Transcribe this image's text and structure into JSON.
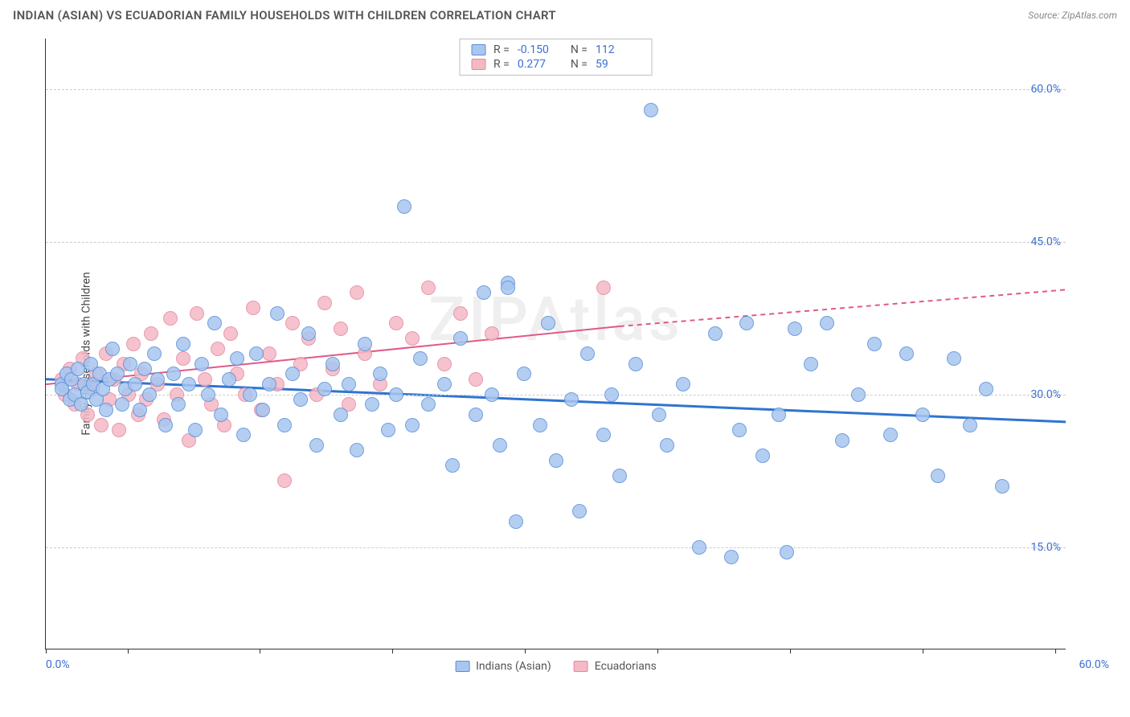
{
  "title": "INDIAN (ASIAN) VS ECUADORIAN FAMILY HOUSEHOLDS WITH CHILDREN CORRELATION CHART",
  "source": "Source: ZipAtlas.com",
  "ylabel": "Family Households with Children",
  "watermark": "ZIPAtlas",
  "chart": {
    "type": "scatter",
    "xlim": [
      0,
      64
    ],
    "ylim": [
      5,
      65
    ],
    "x_tick_positions_pct": [
      0,
      8,
      21,
      34,
      47,
      60,
      73,
      86,
      99
    ],
    "x_label_min": "0.0%",
    "x_label_max": "60.0%",
    "y_gridlines": [
      15,
      30,
      45,
      60
    ],
    "y_labels": [
      "15.0%",
      "30.0%",
      "45.0%",
      "60.0%"
    ],
    "background_color": "#ffffff",
    "grid_color": "#cccccc",
    "axis_color": "#333333",
    "tick_label_color": "#3b6fd1",
    "point_radius": 9,
    "point_opacity_fill": 0.35,
    "point_opacity_stroke": 0.9,
    "series": {
      "indians": {
        "label": "Indians (Asian)",
        "fill": "#a8c6f0",
        "stroke": "#5a8fd6",
        "regression_color": "#2f74d0",
        "regression_width": 3,
        "regression": {
          "x1": 0,
          "y1": 31.5,
          "x2": 64,
          "y2": 27.3
        },
        "r": "-0.150",
        "n": "112",
        "points": [
          [
            1,
            31
          ],
          [
            1,
            30.5
          ],
          [
            1.3,
            32
          ],
          [
            1.5,
            29.5
          ],
          [
            1.6,
            31.5
          ],
          [
            1.8,
            30
          ],
          [
            2,
            32.5
          ],
          [
            2.2,
            29
          ],
          [
            2.4,
            31
          ],
          [
            2.6,
            30.2
          ],
          [
            2.8,
            33
          ],
          [
            3,
            31
          ],
          [
            3.2,
            29.5
          ],
          [
            3.4,
            32
          ],
          [
            3.6,
            30.5
          ],
          [
            3.8,
            28.5
          ],
          [
            4,
            31.5
          ],
          [
            4.2,
            34.5
          ],
          [
            4.5,
            32
          ],
          [
            4.8,
            29
          ],
          [
            5,
            30.5
          ],
          [
            5.3,
            33
          ],
          [
            5.6,
            31
          ],
          [
            5.9,
            28.5
          ],
          [
            6.2,
            32.5
          ],
          [
            6.5,
            30
          ],
          [
            6.8,
            34
          ],
          [
            7,
            31.5
          ],
          [
            7.5,
            27
          ],
          [
            8,
            32
          ],
          [
            8.3,
            29
          ],
          [
            8.6,
            35
          ],
          [
            9,
            31
          ],
          [
            9.4,
            26.5
          ],
          [
            9.8,
            33
          ],
          [
            10.2,
            30
          ],
          [
            10.6,
            37
          ],
          [
            11,
            28
          ],
          [
            11.5,
            31.5
          ],
          [
            12,
            33.5
          ],
          [
            12.4,
            26
          ],
          [
            12.8,
            30
          ],
          [
            13.2,
            34
          ],
          [
            13.6,
            28.5
          ],
          [
            14,
            31
          ],
          [
            14.5,
            38
          ],
          [
            15,
            27
          ],
          [
            15.5,
            32
          ],
          [
            16,
            29.5
          ],
          [
            16.5,
            36
          ],
          [
            17,
            25
          ],
          [
            17.5,
            30.5
          ],
          [
            18,
            33
          ],
          [
            18.5,
            28
          ],
          [
            19,
            31
          ],
          [
            19.5,
            24.5
          ],
          [
            20,
            35
          ],
          [
            20.5,
            29
          ],
          [
            21,
            32
          ],
          [
            21.5,
            26.5
          ],
          [
            22,
            30
          ],
          [
            22.5,
            48.5
          ],
          [
            23,
            27
          ],
          [
            23.5,
            33.5
          ],
          [
            24,
            29
          ],
          [
            25,
            31
          ],
          [
            25.5,
            23
          ],
          [
            26,
            35.5
          ],
          [
            27,
            28
          ],
          [
            27.5,
            40
          ],
          [
            28,
            30
          ],
          [
            28.5,
            25
          ],
          [
            29,
            41
          ],
          [
            29,
            40.5
          ],
          [
            29.5,
            17.5
          ],
          [
            30,
            32
          ],
          [
            31,
            27
          ],
          [
            31.5,
            37
          ],
          [
            32,
            23.5
          ],
          [
            33,
            29.5
          ],
          [
            33.5,
            18.5
          ],
          [
            34,
            34
          ],
          [
            35,
            26
          ],
          [
            35.5,
            30
          ],
          [
            36,
            22
          ],
          [
            37,
            33
          ],
          [
            38,
            58
          ],
          [
            38.5,
            28
          ],
          [
            39,
            25
          ],
          [
            40,
            31
          ],
          [
            41,
            15
          ],
          [
            42,
            36
          ],
          [
            43,
            14
          ],
          [
            43.5,
            26.5
          ],
          [
            44,
            37
          ],
          [
            45,
            24
          ],
          [
            46,
            28
          ],
          [
            46.5,
            14.5
          ],
          [
            47,
            36.5
          ],
          [
            48,
            33
          ],
          [
            49,
            37
          ],
          [
            50,
            25.5
          ],
          [
            51,
            30
          ],
          [
            52,
            35
          ],
          [
            53,
            26
          ],
          [
            54,
            34
          ],
          [
            55,
            28
          ],
          [
            56,
            22
          ],
          [
            57,
            33.5
          ],
          [
            58,
            27
          ],
          [
            59,
            30.5
          ],
          [
            60,
            21
          ]
        ]
      },
      "ecuadorians": {
        "label": "Ecuadorians",
        "fill": "#f5b8c5",
        "stroke": "#e389a0",
        "regression_color": "#e05a86",
        "regression_width": 2,
        "regression_solid": {
          "x1": 0,
          "y1": 31,
          "x2": 36,
          "y2": 36.7
        },
        "regression_dashed": {
          "x1": 36,
          "y1": 36.7,
          "x2": 64,
          "y2": 40.3
        },
        "r": "0.277",
        "n": "59",
        "points": [
          [
            1,
            31.5
          ],
          [
            1.2,
            30
          ],
          [
            1.5,
            32.5
          ],
          [
            1.8,
            29
          ],
          [
            2,
            31
          ],
          [
            2.3,
            33.5
          ],
          [
            2.6,
            28
          ],
          [
            2.9,
            30.5
          ],
          [
            3.2,
            32
          ],
          [
            3.5,
            27
          ],
          [
            3.8,
            34
          ],
          [
            4,
            29.5
          ],
          [
            4.3,
            31.5
          ],
          [
            4.6,
            26.5
          ],
          [
            4.9,
            33
          ],
          [
            5.2,
            30
          ],
          [
            5.5,
            35
          ],
          [
            5.8,
            28
          ],
          [
            6,
            32
          ],
          [
            6.3,
            29.5
          ],
          [
            6.6,
            36
          ],
          [
            7,
            31
          ],
          [
            7.4,
            27.5
          ],
          [
            7.8,
            37.5
          ],
          [
            8.2,
            30
          ],
          [
            8.6,
            33.5
          ],
          [
            9,
            25.5
          ],
          [
            9.5,
            38
          ],
          [
            10,
            31.5
          ],
          [
            10.4,
            29
          ],
          [
            10.8,
            34.5
          ],
          [
            11.2,
            27
          ],
          [
            11.6,
            36
          ],
          [
            12,
            32
          ],
          [
            12.5,
            30
          ],
          [
            13,
            38.5
          ],
          [
            13.5,
            28.5
          ],
          [
            14,
            34
          ],
          [
            14.5,
            31
          ],
          [
            15,
            21.5
          ],
          [
            15.5,
            37
          ],
          [
            16,
            33
          ],
          [
            16.5,
            35.5
          ],
          [
            17,
            30
          ],
          [
            17.5,
            39
          ],
          [
            18,
            32.5
          ],
          [
            18.5,
            36.5
          ],
          [
            19,
            29
          ],
          [
            19.5,
            40
          ],
          [
            20,
            34
          ],
          [
            21,
            31
          ],
          [
            22,
            37
          ],
          [
            23,
            35.5
          ],
          [
            24,
            40.5
          ],
          [
            25,
            33
          ],
          [
            26,
            38
          ],
          [
            27,
            31.5
          ],
          [
            28,
            36
          ],
          [
            35,
            40.5
          ]
        ]
      }
    }
  }
}
